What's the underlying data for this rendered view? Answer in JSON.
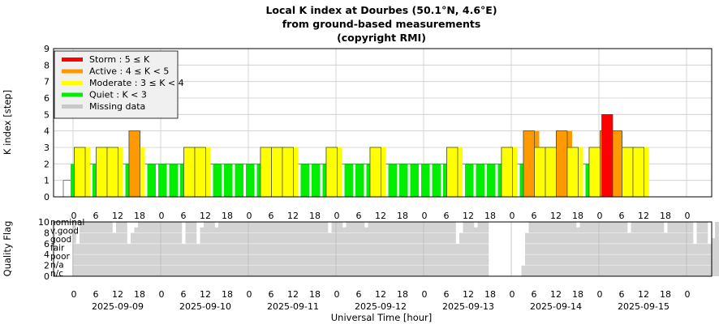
{
  "chart_data": [
    {
      "type": "bar",
      "title_lines": [
        "Local K index at Dourbes (50.1°N, 4.6°E)",
        "from ground-based measurements",
        "(copyright RMI)"
      ],
      "ylabel": "K index [step]",
      "ylim": [
        0,
        9
      ],
      "yticks": [
        "0",
        "1",
        "2",
        "3",
        "4",
        "5",
        "6",
        "7",
        "8",
        "9"
      ],
      "grid": true,
      "legend_position": "top-left",
      "legend": [
        {
          "label": "Storm : 5 ≤ K",
          "color": "#ff0000"
        },
        {
          "label": "Active : 4 ≤ K < 5",
          "color": "#ff9900"
        },
        {
          "label": "Moderate : 3 ≤ K < 4",
          "color": "#ffff00"
        },
        {
          "label": "Quiet : K < 3",
          "color": "#00ee00"
        },
        {
          "label": "Missing data",
          "color": "#c8c8c8"
        }
      ],
      "bar_interval_hours": 3,
      "x_start": "2025-09-09 00:00",
      "k_values": [
        1,
        3,
        2,
        3,
        3,
        2,
        4,
        2,
        2,
        2,
        2,
        3,
        3,
        2,
        2,
        2,
        2,
        2,
        3,
        3,
        3,
        2,
        2,
        2,
        3,
        2,
        2,
        2,
        3,
        2,
        2,
        2,
        2,
        2,
        2,
        3,
        2,
        2,
        2,
        2,
        3,
        2,
        4,
        3,
        3,
        4,
        3,
        2,
        3,
        4,
        4,
        3,
        3
      ],
      "k_values_dense": [
        2,
        3,
        2,
        2,
        3,
        2,
        3,
        2,
        2,
        2,
        2,
        3,
        3,
        2,
        2,
        2,
        2,
        2,
        3,
        3,
        3,
        2,
        2,
        2,
        3,
        2,
        2,
        2,
        3,
        2,
        2,
        2,
        2,
        2,
        2,
        3,
        2,
        2,
        2,
        2,
        3,
        2,
        4,
        3,
        3,
        4,
        3,
        2,
        3,
        4,
        3,
        3,
        3
      ]
    },
    {
      "type": "bar",
      "ylabel": "Quality Flag",
      "ylim": [
        0,
        10
      ],
      "yticks": [
        "0",
        "2",
        "4",
        "6",
        "8",
        "10"
      ],
      "quality_labels": [
        "nominal",
        "v.good",
        "good",
        "fair",
        "poor",
        "n/a",
        "n/c"
      ],
      "xlabel": "Universal Time [hour]",
      "hour_ticks": [
        "0",
        "6",
        "12",
        "18",
        "0",
        "6",
        "12",
        "18",
        "0",
        "6",
        "12",
        "18",
        "0",
        "6",
        "12",
        "18",
        "0",
        "6",
        "12",
        "18",
        "0",
        "6",
        "12",
        "18",
        "0",
        "6",
        "12",
        "18",
        "0"
      ],
      "dates": [
        "2025-09-09",
        "2025-09-10",
        "2025-09-11",
        "2025-09-12",
        "2025-09-13",
        "2025-09-14",
        "2025-09-15"
      ],
      "quality_color": "#d3d3d3",
      "quality_values_hourly": [
        10,
        6,
        10,
        10,
        10,
        10,
        10,
        10,
        10,
        10,
        10,
        8,
        10,
        10,
        10,
        6,
        8,
        9,
        10,
        10,
        10,
        10,
        10,
        10,
        10,
        10,
        10,
        10,
        10,
        10,
        6,
        10,
        10,
        10,
        6,
        9,
        10,
        10,
        10,
        9,
        10,
        10,
        10,
        10,
        10,
        10,
        10,
        10,
        10,
        10,
        10,
        10,
        10,
        10,
        10,
        10,
        10,
        10,
        10,
        10,
        10,
        10,
        10,
        10,
        10,
        10,
        10,
        10,
        10,
        10,
        8,
        10,
        10,
        10,
        9,
        10,
        10,
        10,
        10,
        10,
        9,
        10,
        10,
        10,
        10,
        10,
        10,
        10,
        10,
        10,
        10,
        10,
        10,
        10,
        10,
        10,
        10,
        10,
        10,
        10,
        10,
        10,
        10,
        10,
        10,
        6,
        8,
        10,
        10,
        10,
        9,
        10,
        10,
        10,
        0,
        0,
        0,
        0,
        0,
        0,
        0,
        0,
        0,
        2,
        8,
        10,
        10,
        10,
        10,
        10,
        10,
        10,
        10,
        10,
        10,
        10,
        10,
        10,
        9,
        10,
        10,
        10,
        10,
        10,
        10,
        10,
        10,
        10,
        10,
        10,
        10,
        10,
        8,
        10,
        10,
        10,
        10,
        10,
        10,
        10,
        10,
        10,
        8,
        10,
        10,
        10,
        10,
        10,
        10,
        10,
        6,
        10,
        10,
        10,
        6,
        7,
        10,
        10,
        9,
        10,
        10,
        10,
        10,
        10,
        10,
        10,
        10,
        10,
        10,
        10,
        8,
        10,
        10,
        10,
        10
      ]
    }
  ]
}
